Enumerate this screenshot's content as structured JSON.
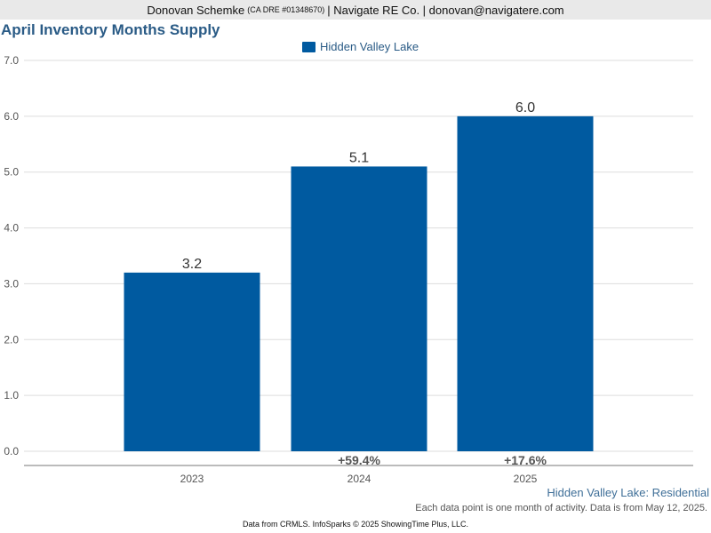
{
  "header": {
    "name": "Donovan Schemke",
    "license": "(CA DRE #01348670)",
    "company_email": "| Navigate RE Co. | donovan@navigatere.com"
  },
  "colors": {
    "bar": "#005aa0",
    "title": "#2a5b86"
  },
  "chart_data": {
    "type": "bar",
    "title": "April Inventory Months Supply",
    "categories": [
      "2023",
      "2024",
      "2025"
    ],
    "series": [
      {
        "name": "Hidden Valley Lake",
        "values": [
          3.2,
          5.1,
          6.0
        ]
      }
    ],
    "value_labels": [
      "3.2",
      "5.1",
      "6.0"
    ],
    "change_labels": [
      "",
      "+59.4%",
      "+17.6%"
    ],
    "ylim": [
      0,
      7
    ],
    "yticks": [
      "0.0",
      "1.0",
      "2.0",
      "3.0",
      "4.0",
      "5.0",
      "6.0",
      "7.0"
    ],
    "grid": true,
    "legend": "top-center"
  },
  "subtitle": "Hidden Valley Lake: Residential",
  "note": "Each data point is one month of activity. Data is from May 12, 2025.",
  "footer": "Data from CRMLS. InfoSparks © 2025 ShowingTime Plus, LLC."
}
